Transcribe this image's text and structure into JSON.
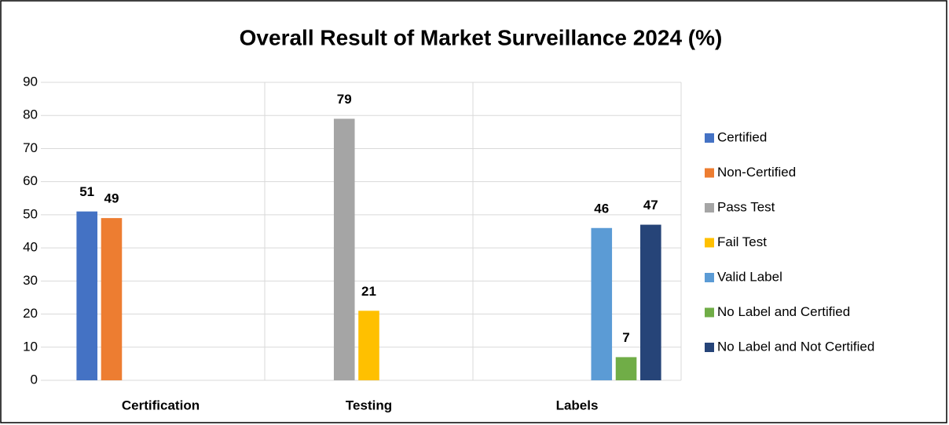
{
  "chart_data": {
    "type": "bar",
    "title": "Overall Result of Market Surveillance 2024 (%)",
    "categories": [
      "Certification",
      "Testing",
      "Labels"
    ],
    "series": [
      {
        "name": "Certified",
        "color": "#4472c4",
        "values": [
          51,
          null,
          null
        ]
      },
      {
        "name": "Non-Certified",
        "color": "#ed7d31",
        "values": [
          49,
          null,
          null
        ]
      },
      {
        "name": "Pass Test",
        "color": "#a5a5a5",
        "values": [
          null,
          79,
          null
        ]
      },
      {
        "name": "Fail Test",
        "color": "#ffc000",
        "values": [
          null,
          21,
          null
        ]
      },
      {
        "name": "Valid Label",
        "color": "#5b9bd5",
        "values": [
          null,
          null,
          46
        ]
      },
      {
        "name": "No Label and Certified",
        "color": "#70ad47",
        "values": [
          null,
          null,
          7
        ]
      },
      {
        "name": "No Label and Not Certified",
        "color": "#264478",
        "values": [
          null,
          null,
          47
        ]
      }
    ],
    "ylim": [
      0,
      90
    ],
    "yticks": [
      0,
      10,
      20,
      30,
      40,
      50,
      60,
      70,
      80,
      90
    ],
    "grid": true,
    "legend": "right"
  }
}
